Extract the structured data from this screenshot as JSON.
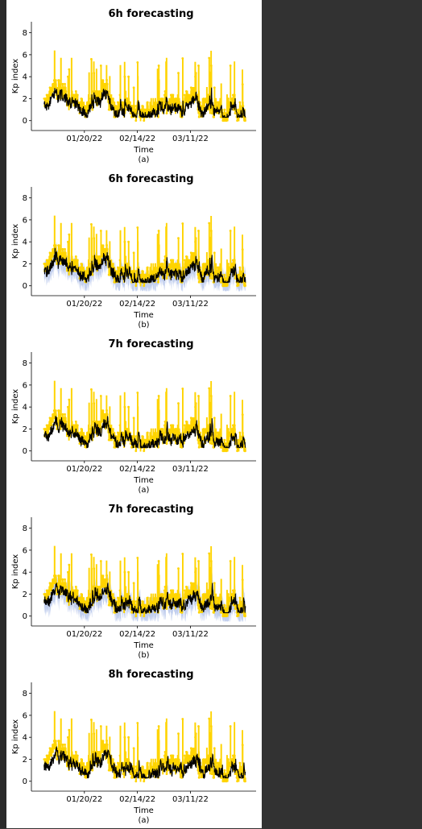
{
  "page": {
    "background": "#323232",
    "figure_background": "#ffffff"
  },
  "colors": {
    "actual": "#ffd400",
    "predicted": "#000000",
    "uncertainty_band": "#aebfe8"
  },
  "chart_data": [
    {
      "type": "line",
      "title": "6h forecasting",
      "xlabel": "Time",
      "caption": "(a)",
      "ylabel": "Kp index",
      "ylim": [
        -0.9,
        9.0
      ],
      "yticks": [
        0,
        2,
        4,
        6,
        8
      ],
      "xlim": [
        "2021-12-26",
        "2022-04-11"
      ],
      "xticks": [
        {
          "date": "2022-01-20",
          "label": "01/20/22"
        },
        {
          "date": "2022-02-14",
          "label": "02/14/22"
        },
        {
          "date": "2022-03-11",
          "label": "03/11/22"
        }
      ],
      "series": [
        {
          "role": "actual",
          "color": "#ffd400",
          "x_start": "2022-01-01",
          "x_end": "2022-04-06",
          "y_range": [
            0.0,
            6.3
          ]
        },
        {
          "role": "predicted",
          "color": "#000000",
          "x_start": "2022-01-01",
          "x_end": "2022-04-06",
          "y_range": [
            0.3,
            3.5
          ]
        }
      ],
      "uncertainty_band": false,
      "grid": false
    },
    {
      "type": "line",
      "title": "6h forecasting",
      "xlabel": "Time",
      "caption": "(b)",
      "ylabel": "Kp index",
      "ylim": [
        -0.9,
        9.0
      ],
      "yticks": [
        0,
        2,
        4,
        6,
        8
      ],
      "xlim": [
        "2021-12-26",
        "2022-04-11"
      ],
      "xticks": [
        {
          "date": "2022-01-20",
          "label": "01/20/22"
        },
        {
          "date": "2022-02-14",
          "label": "02/14/22"
        },
        {
          "date": "2022-03-11",
          "label": "03/11/22"
        }
      ],
      "series": [
        {
          "role": "actual",
          "color": "#ffd400",
          "x_start": "2022-01-01",
          "x_end": "2022-04-06",
          "y_range": [
            0.0,
            6.3
          ]
        },
        {
          "role": "predicted",
          "color": "#000000",
          "x_start": "2022-01-01",
          "x_end": "2022-04-06",
          "y_range": [
            0.3,
            3.5
          ]
        }
      ],
      "uncertainty_band": true,
      "grid": false
    },
    {
      "type": "line",
      "title": "7h forecasting",
      "xlabel": "Time",
      "caption": "(a)",
      "ylabel": "Kp index",
      "ylim": [
        -0.9,
        9.0
      ],
      "yticks": [
        0,
        2,
        4,
        6,
        8
      ],
      "xlim": [
        "2021-12-26",
        "2022-04-11"
      ],
      "xticks": [
        {
          "date": "2022-01-20",
          "label": "01/20/22"
        },
        {
          "date": "2022-02-14",
          "label": "02/14/22"
        },
        {
          "date": "2022-03-11",
          "label": "03/11/22"
        }
      ],
      "series": [
        {
          "role": "actual",
          "color": "#ffd400",
          "x_start": "2022-01-01",
          "x_end": "2022-04-06",
          "y_range": [
            0.0,
            6.3
          ]
        },
        {
          "role": "predicted",
          "color": "#000000",
          "x_start": "2022-01-01",
          "x_end": "2022-04-06",
          "y_range": [
            0.3,
            3.5
          ]
        }
      ],
      "uncertainty_band": false,
      "grid": false
    },
    {
      "type": "line",
      "title": "7h forecasting",
      "xlabel": "Time",
      "caption": "(b)",
      "ylabel": "Kp index",
      "ylim": [
        -0.9,
        9.0
      ],
      "yticks": [
        0,
        2,
        4,
        6,
        8
      ],
      "xlim": [
        "2021-12-26",
        "2022-04-11"
      ],
      "xticks": [
        {
          "date": "2022-01-20",
          "label": "01/20/22"
        },
        {
          "date": "2022-02-14",
          "label": "02/14/22"
        },
        {
          "date": "2022-03-11",
          "label": "03/11/22"
        }
      ],
      "series": [
        {
          "role": "actual",
          "color": "#ffd400",
          "x_start": "2022-01-01",
          "x_end": "2022-04-06",
          "y_range": [
            0.0,
            6.3
          ]
        },
        {
          "role": "predicted",
          "color": "#000000",
          "x_start": "2022-01-01",
          "x_end": "2022-04-06",
          "y_range": [
            0.3,
            3.5
          ]
        }
      ],
      "uncertainty_band": true,
      "grid": false
    },
    {
      "type": "line",
      "title": "8h forecasting",
      "xlabel": "Time",
      "caption": "(a)",
      "ylabel": "Kp index",
      "ylim": [
        -0.9,
        9.0
      ],
      "yticks": [
        0,
        2,
        4,
        6,
        8
      ],
      "xlim": [
        "2021-12-26",
        "2022-04-11"
      ],
      "xticks": [
        {
          "date": "2022-01-20",
          "label": "01/20/22"
        },
        {
          "date": "2022-02-14",
          "label": "02/14/22"
        },
        {
          "date": "2022-03-11",
          "label": "03/11/22"
        }
      ],
      "series": [
        {
          "role": "actual",
          "color": "#ffd400",
          "x_start": "2022-01-01",
          "x_end": "2022-04-06",
          "y_range": [
            0.0,
            6.3
          ]
        },
        {
          "role": "predicted",
          "color": "#000000",
          "x_start": "2022-01-01",
          "x_end": "2022-04-06",
          "y_range": [
            0.3,
            3.5
          ]
        }
      ],
      "uncertainty_band": false,
      "grid": false
    }
  ]
}
